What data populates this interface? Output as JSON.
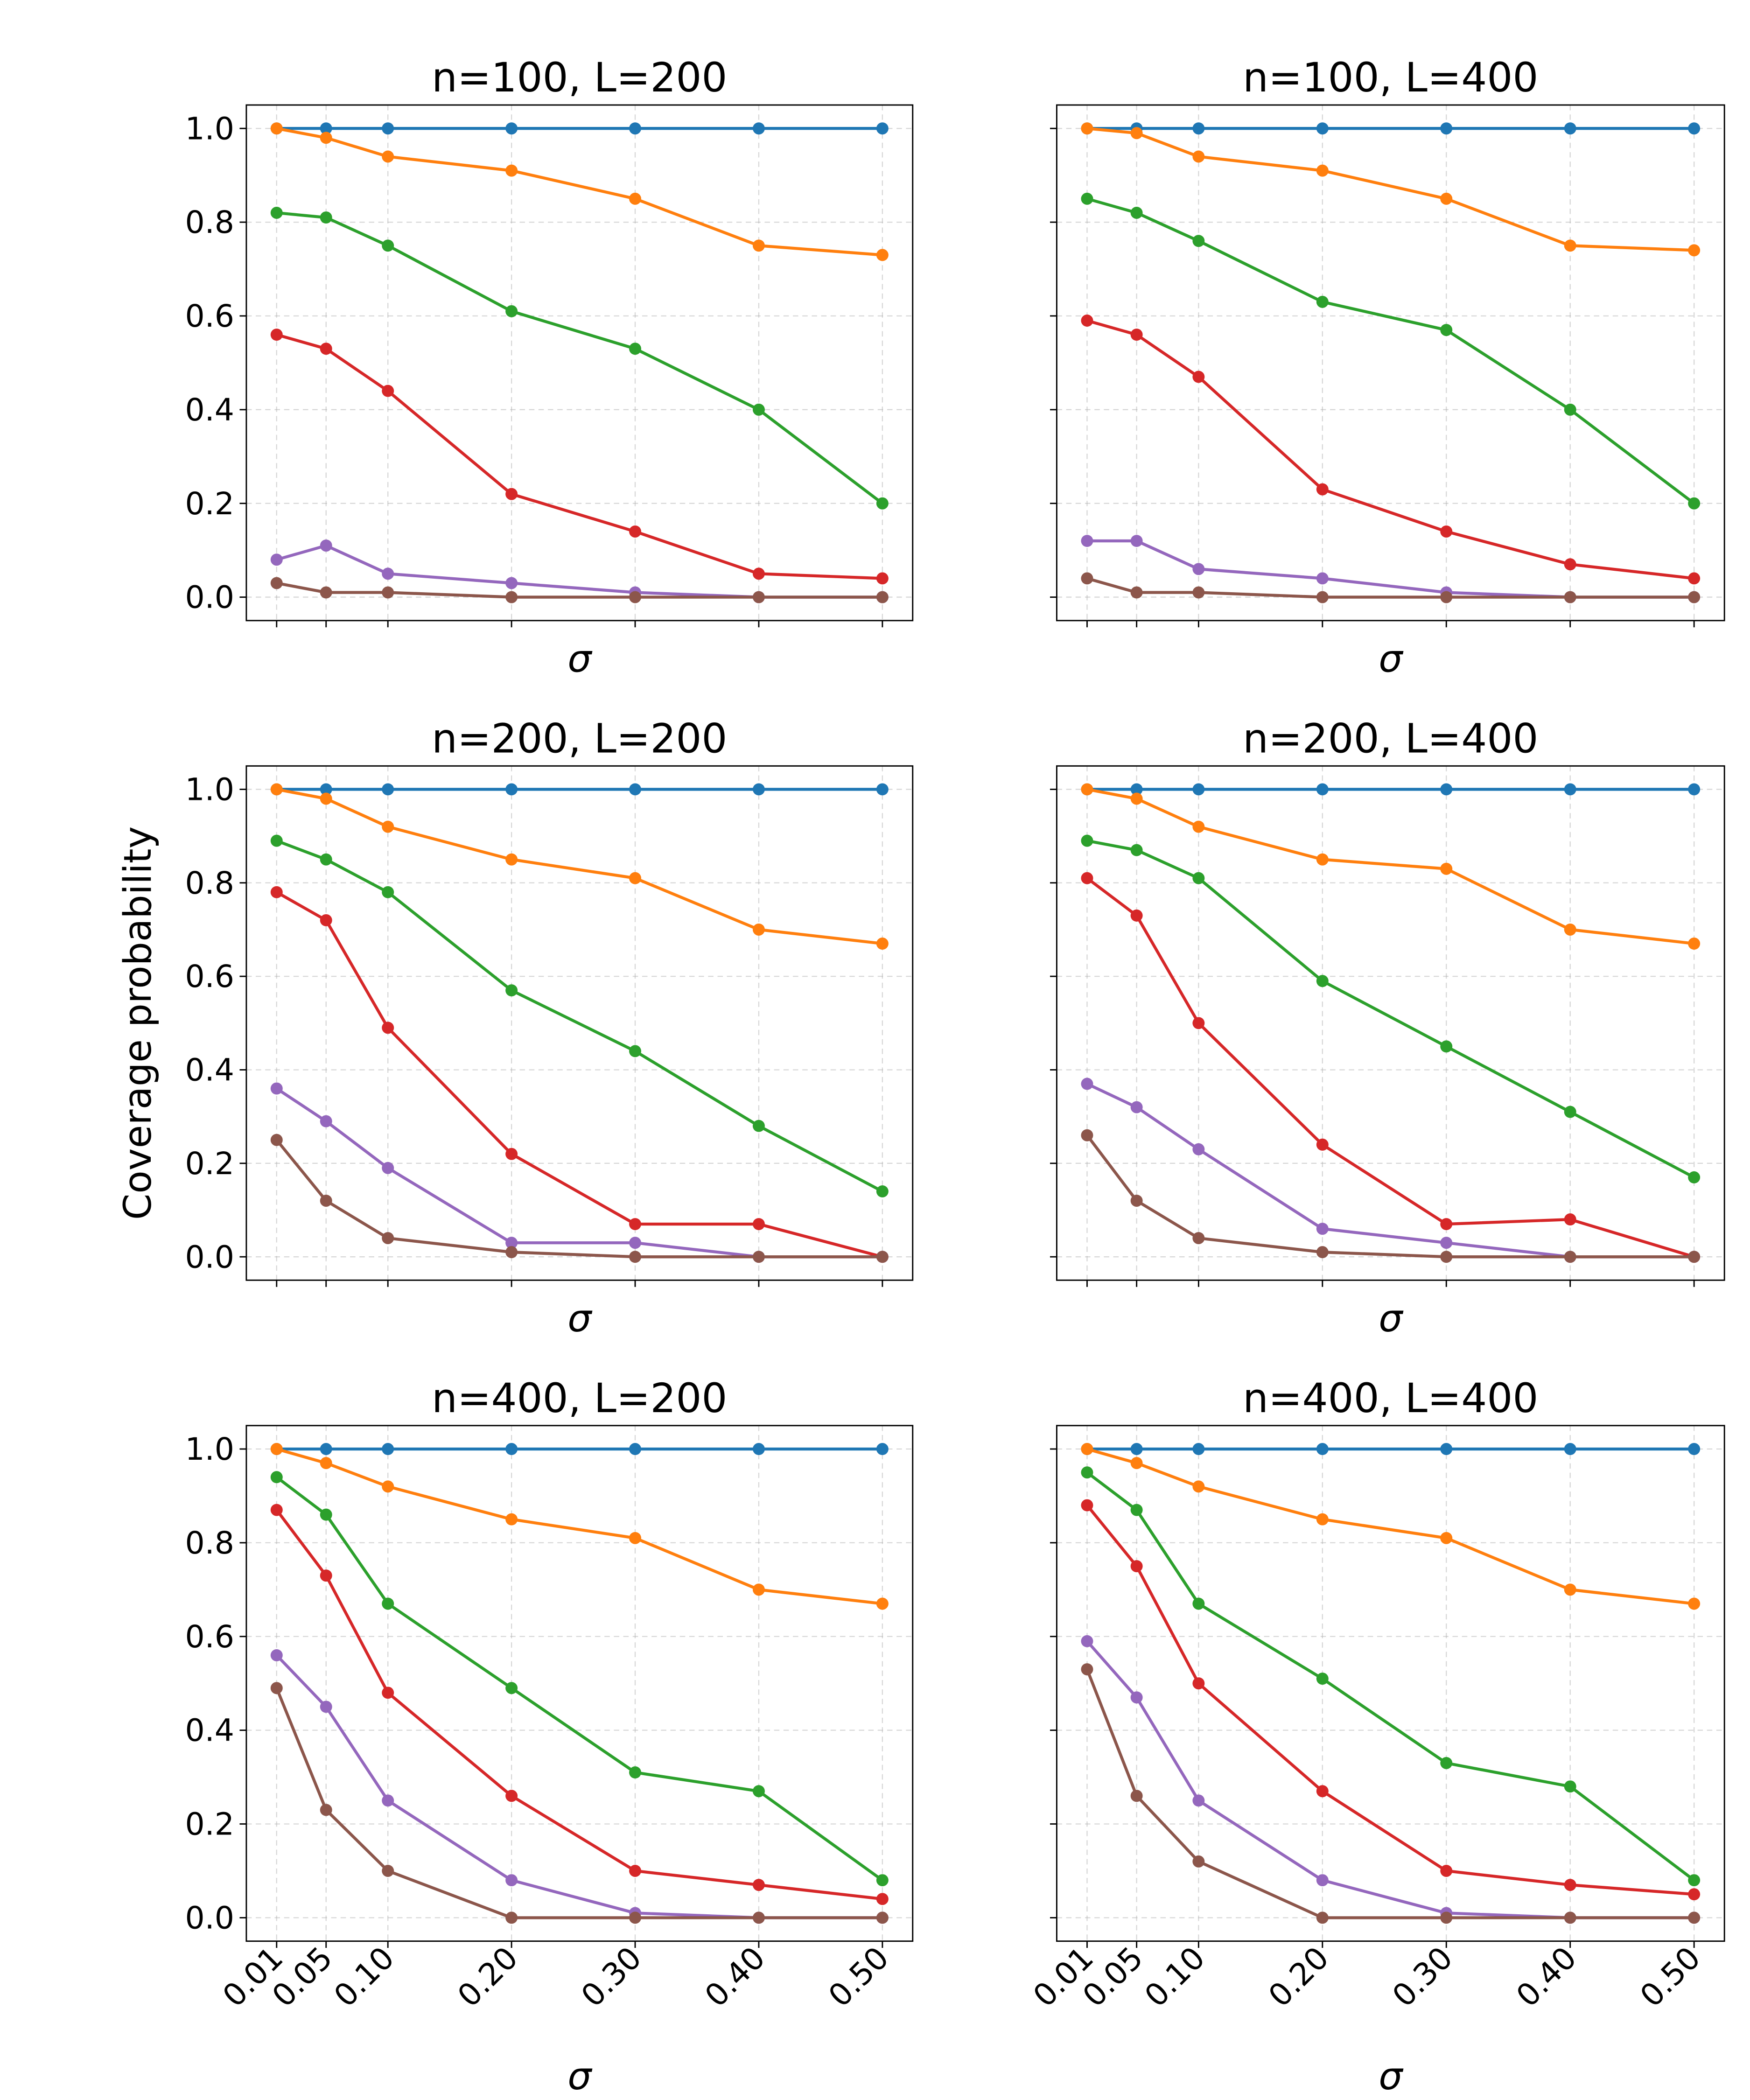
{
  "chart_data": [
    {
      "type": "line",
      "title": "n=100, L=200",
      "x_label": "σ",
      "x": [
        0.01,
        0.05,
        0.1,
        0.2,
        0.3,
        0.4,
        0.5
      ],
      "xlim": [
        -0.0145,
        0.5245
      ],
      "ylim": [
        -0.05,
        1.05
      ],
      "xticks": [
        0.01,
        0.05,
        0.1,
        0.2,
        0.3,
        0.4,
        0.5
      ],
      "yticks": [
        {
          "value": 0,
          "label": "0.0"
        },
        0.2,
        0.4,
        0.6,
        0.8,
        {
          "value": 1,
          "label": "1.0"
        }
      ],
      "show_xtick_labels": false,
      "show_ytick_labels": true,
      "grid": true,
      "series": [
        {
          "color": "#1f77b4",
          "values": [
            1,
            1,
            1,
            1,
            1,
            1,
            1
          ]
        },
        {
          "color": "#ff7f0e",
          "values": [
            1,
            0.98,
            0.94,
            0.91,
            0.85,
            0.75,
            0.73
          ]
        },
        {
          "color": "#2ca02c",
          "values": [
            0.82,
            0.81,
            0.75,
            0.61,
            0.53,
            0.4,
            0.2
          ]
        },
        {
          "color": "#d62728",
          "values": [
            0.56,
            0.53,
            0.44,
            0.22,
            0.14,
            0.05,
            0.04
          ]
        },
        {
          "color": "#9467bd",
          "values": [
            0.08,
            0.11,
            0.05,
            0.03,
            0.01,
            0,
            0
          ]
        },
        {
          "color": "#8c564b",
          "values": [
            0.03,
            0.01,
            0.01,
            0,
            0,
            0,
            0
          ]
        }
      ]
    },
    {
      "type": "line",
      "title": "n=100, L=400",
      "x_label": "σ",
      "x": [
        0.01,
        0.05,
        0.1,
        0.2,
        0.3,
        0.4,
        0.5
      ],
      "xlim": [
        -0.0145,
        0.5245
      ],
      "ylim": [
        -0.05,
        1.05
      ],
      "xticks": [
        0.01,
        0.05,
        0.1,
        0.2,
        0.3,
        0.4,
        0.5
      ],
      "yticks": [
        0,
        0.2,
        0.4,
        0.6,
        0.8,
        1
      ],
      "show_xtick_labels": false,
      "show_ytick_labels": false,
      "grid": true,
      "series": [
        {
          "color": "#1f77b4",
          "values": [
            1,
            1,
            1,
            1,
            1,
            1,
            1
          ]
        },
        {
          "color": "#ff7f0e",
          "values": [
            1,
            0.99,
            0.94,
            0.91,
            0.85,
            0.75,
            0.74
          ]
        },
        {
          "color": "#2ca02c",
          "values": [
            0.85,
            0.82,
            0.76,
            0.63,
            0.57,
            0.4,
            0.2
          ]
        },
        {
          "color": "#d62728",
          "values": [
            0.59,
            0.56,
            0.47,
            0.23,
            0.14,
            0.07,
            0.04
          ]
        },
        {
          "color": "#9467bd",
          "values": [
            0.12,
            0.12,
            0.06,
            0.04,
            0.01,
            0,
            0
          ]
        },
        {
          "color": "#8c564b",
          "values": [
            0.04,
            0.01,
            0.01,
            0,
            0,
            0,
            0
          ]
        }
      ]
    },
    {
      "type": "line",
      "title": "n=200, L=200",
      "x_label": "σ",
      "y_label": "Coverage probability",
      "x": [
        0.01,
        0.05,
        0.1,
        0.2,
        0.3,
        0.4,
        0.5
      ],
      "xlim": [
        -0.0145,
        0.5245
      ],
      "ylim": [
        -0.05,
        1.05
      ],
      "xticks": [
        0.01,
        0.05,
        0.1,
        0.2,
        0.3,
        0.4,
        0.5
      ],
      "yticks": [
        {
          "value": 0,
          "label": "0.0"
        },
        0.2,
        0.4,
        0.6,
        0.8,
        {
          "value": 1,
          "label": "1.0"
        }
      ],
      "show_xtick_labels": false,
      "show_ytick_labels": true,
      "grid": true,
      "series": [
        {
          "color": "#1f77b4",
          "values": [
            1,
            1,
            1,
            1,
            1,
            1,
            1
          ]
        },
        {
          "color": "#ff7f0e",
          "values": [
            1,
            0.98,
            0.92,
            0.85,
            0.81,
            0.7,
            0.67
          ]
        },
        {
          "color": "#2ca02c",
          "values": [
            0.89,
            0.85,
            0.78,
            0.57,
            0.44,
            0.28,
            0.14
          ]
        },
        {
          "color": "#d62728",
          "values": [
            0.78,
            0.72,
            0.49,
            0.22,
            0.07,
            0.07,
            0
          ]
        },
        {
          "color": "#9467bd",
          "values": [
            0.36,
            0.29,
            0.19,
            0.03,
            0.03,
            0,
            0
          ]
        },
        {
          "color": "#8c564b",
          "values": [
            0.25,
            0.12,
            0.04,
            0.01,
            0,
            0,
            0
          ]
        }
      ]
    },
    {
      "type": "line",
      "title": "n=200, L=400",
      "x_label": "σ",
      "x": [
        0.01,
        0.05,
        0.1,
        0.2,
        0.3,
        0.4,
        0.5
      ],
      "xlim": [
        -0.0145,
        0.5245
      ],
      "ylim": [
        -0.05,
        1.05
      ],
      "xticks": [
        0.01,
        0.05,
        0.1,
        0.2,
        0.3,
        0.4,
        0.5
      ],
      "yticks": [
        0,
        0.2,
        0.4,
        0.6,
        0.8,
        1
      ],
      "show_xtick_labels": false,
      "show_ytick_labels": false,
      "grid": true,
      "series": [
        {
          "color": "#1f77b4",
          "values": [
            1,
            1,
            1,
            1,
            1,
            1,
            1
          ]
        },
        {
          "color": "#ff7f0e",
          "values": [
            1,
            0.98,
            0.92,
            0.85,
            0.83,
            0.7,
            0.67
          ]
        },
        {
          "color": "#2ca02c",
          "values": [
            0.89,
            0.87,
            0.81,
            0.59,
            0.45,
            0.31,
            0.17
          ]
        },
        {
          "color": "#d62728",
          "values": [
            0.81,
            0.73,
            0.5,
            0.24,
            0.07,
            0.08,
            0
          ]
        },
        {
          "color": "#9467bd",
          "values": [
            0.37,
            0.32,
            0.23,
            0.06,
            0.03,
            0,
            0
          ]
        },
        {
          "color": "#8c564b",
          "values": [
            0.26,
            0.12,
            0.04,
            0.01,
            0,
            0,
            0
          ]
        }
      ]
    },
    {
      "type": "line",
      "title": "n=400, L=200",
      "x_label": "σ",
      "x": [
        0.01,
        0.05,
        0.1,
        0.2,
        0.3,
        0.4,
        0.5
      ],
      "xlim": [
        -0.0145,
        0.5245
      ],
      "ylim": [
        -0.05,
        1.05
      ],
      "xticks": [
        0.01,
        0.05,
        {
          "value": 0.1,
          "label": "0.10"
        },
        {
          "value": 0.2,
          "label": "0.20"
        },
        {
          "value": 0.3,
          "label": "0.30"
        },
        {
          "value": 0.4,
          "label": "0.40"
        },
        {
          "value": 0.5,
          "label": "0.50"
        }
      ],
      "yticks": [
        {
          "value": 0,
          "label": "0.0"
        },
        0.2,
        0.4,
        0.6,
        0.8,
        {
          "value": 1,
          "label": "1.0"
        }
      ],
      "show_xtick_labels": true,
      "show_ytick_labels": true,
      "grid": true,
      "series": [
        {
          "color": "#1f77b4",
          "values": [
            1,
            1,
            1,
            1,
            1,
            1,
            1
          ]
        },
        {
          "color": "#ff7f0e",
          "values": [
            1,
            0.97,
            0.92,
            0.85,
            0.81,
            0.7,
            0.67
          ]
        },
        {
          "color": "#2ca02c",
          "values": [
            0.94,
            0.86,
            0.67,
            0.49,
            0.31,
            0.27,
            0.08
          ]
        },
        {
          "color": "#d62728",
          "values": [
            0.87,
            0.73,
            0.48,
            0.26,
            0.1,
            0.07,
            0.04
          ]
        },
        {
          "color": "#9467bd",
          "values": [
            0.56,
            0.45,
            0.25,
            0.08,
            0.01,
            0,
            0
          ]
        },
        {
          "color": "#8c564b",
          "values": [
            0.49,
            0.23,
            0.1,
            0,
            0,
            0,
            0
          ]
        }
      ]
    },
    {
      "type": "line",
      "title": "n=400, L=400",
      "x_label": "σ",
      "x": [
        0.01,
        0.05,
        0.1,
        0.2,
        0.3,
        0.4,
        0.5
      ],
      "xlim": [
        -0.0145,
        0.5245
      ],
      "ylim": [
        -0.05,
        1.05
      ],
      "xticks": [
        0.01,
        0.05,
        {
          "value": 0.1,
          "label": "0.10"
        },
        {
          "value": 0.2,
          "label": "0.20"
        },
        {
          "value": 0.3,
          "label": "0.30"
        },
        {
          "value": 0.4,
          "label": "0.40"
        },
        {
          "value": 0.5,
          "label": "0.50"
        }
      ],
      "yticks": [
        0,
        0.2,
        0.4,
        0.6,
        0.8,
        1
      ],
      "show_xtick_labels": true,
      "show_ytick_labels": false,
      "grid": true,
      "series": [
        {
          "color": "#1f77b4",
          "values": [
            1,
            1,
            1,
            1,
            1,
            1,
            1
          ]
        },
        {
          "color": "#ff7f0e",
          "values": [
            1,
            0.97,
            0.92,
            0.85,
            0.81,
            0.7,
            0.67
          ]
        },
        {
          "color": "#2ca02c",
          "values": [
            0.95,
            0.87,
            0.67,
            0.51,
            0.33,
            0.28,
            0.08
          ]
        },
        {
          "color": "#d62728",
          "values": [
            0.88,
            0.75,
            0.5,
            0.27,
            0.1,
            0.07,
            0.05
          ]
        },
        {
          "color": "#9467bd",
          "values": [
            0.59,
            0.47,
            0.25,
            0.08,
            0.01,
            0,
            0
          ]
        },
        {
          "color": "#8c564b",
          "values": [
            0.53,
            0.26,
            0.12,
            0,
            0,
            0,
            0
          ]
        }
      ]
    }
  ]
}
